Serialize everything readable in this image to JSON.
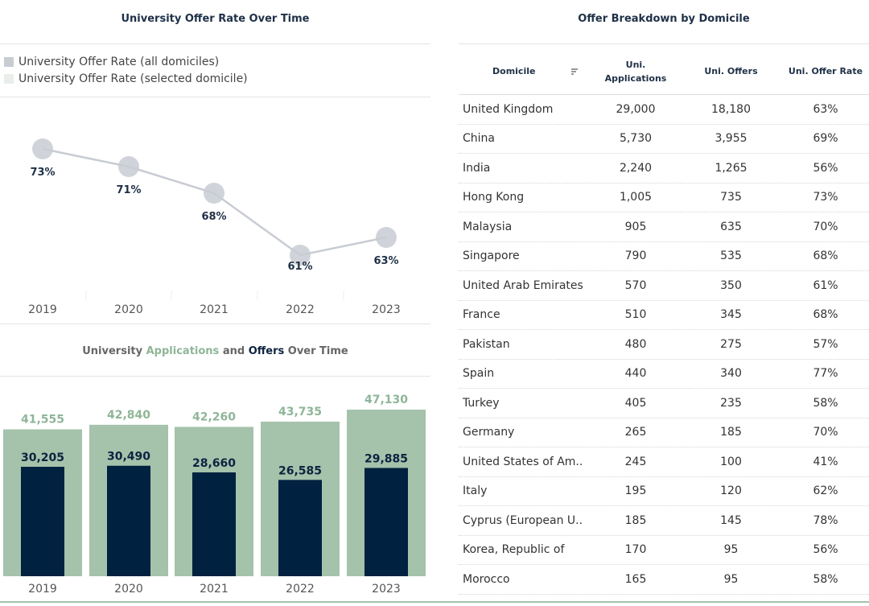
{
  "line_chart": {
    "title": "University Offer Rate Over Time",
    "legend": [
      {
        "label": "University Offer Rate (all domiciles)",
        "color": "#c8ccd3"
      },
      {
        "label": "University Offer Rate (selected domicile)",
        "color": "#e9eeea"
      }
    ]
  },
  "bar_chart": {
    "title_parts": {
      "p1": "University ",
      "p2": "Applications",
      "p3": " and ",
      "p4": "Offers",
      "p5": " Over Time"
    }
  },
  "table": {
    "title": "Offer Breakdown by Domicile",
    "headers": {
      "domicile": "Domicile",
      "applications_l1": "Uni.",
      "applications_l2": "Applications",
      "offers": "Uni. Offers",
      "rate": "Uni. Offer Rate"
    },
    "rows": [
      {
        "domicile": "United Kingdom",
        "applications": "29,000",
        "offers": "18,180",
        "rate": "63%"
      },
      {
        "domicile": "China",
        "applications": "5,730",
        "offers": "3,955",
        "rate": "69%"
      },
      {
        "domicile": "India",
        "applications": "2,240",
        "offers": "1,265",
        "rate": "56%"
      },
      {
        "domicile": "Hong Kong",
        "applications": "1,005",
        "offers": "735",
        "rate": "73%"
      },
      {
        "domicile": "Malaysia",
        "applications": "905",
        "offers": "635",
        "rate": "70%"
      },
      {
        "domicile": "Singapore",
        "applications": "790",
        "offers": "535",
        "rate": "68%"
      },
      {
        "domicile": "United Arab Emirates",
        "applications": "570",
        "offers": "350",
        "rate": "61%"
      },
      {
        "domicile": "France",
        "applications": "510",
        "offers": "345",
        "rate": "68%"
      },
      {
        "domicile": "Pakistan",
        "applications": "480",
        "offers": "275",
        "rate": "57%"
      },
      {
        "domicile": "Spain",
        "applications": "440",
        "offers": "340",
        "rate": "77%"
      },
      {
        "domicile": "Turkey",
        "applications": "405",
        "offers": "235",
        "rate": "58%"
      },
      {
        "domicile": "Germany",
        "applications": "265",
        "offers": "185",
        "rate": "70%"
      },
      {
        "domicile": "United States of Am..",
        "applications": "245",
        "offers": "100",
        "rate": "41%"
      },
      {
        "domicile": "Italy",
        "applications": "195",
        "offers": "120",
        "rate": "62%"
      },
      {
        "domicile": "Cyprus (European U..",
        "applications": "185",
        "offers": "145",
        "rate": "78%"
      },
      {
        "domicile": "Korea, Republic of",
        "applications": "170",
        "offers": "95",
        "rate": "56%"
      },
      {
        "domicile": "Morocco",
        "applications": "165",
        "offers": "95",
        "rate": "58%"
      }
    ]
  },
  "colors": {
    "applications": "#a5c2ab",
    "offers": "#00213f",
    "line": "#c8ccd3",
    "app_label": "#8fb598",
    "off_label": "#0c2340"
  },
  "chart_data": [
    {
      "type": "line",
      "title": "University Offer Rate Over Time",
      "categories": [
        "2019",
        "2020",
        "2021",
        "2022",
        "2023"
      ],
      "values": [
        73,
        71,
        68,
        61,
        63
      ],
      "labels": [
        "73%",
        "71%",
        "68%",
        "61%",
        "63%"
      ],
      "ylim": [
        58,
        76
      ],
      "series_name": "University Offer Rate (all domiciles)"
    },
    {
      "type": "bar",
      "title": "University Applications and Offers Over Time",
      "categories": [
        "2019",
        "2020",
        "2021",
        "2022",
        "2023"
      ],
      "series": [
        {
          "name": "Applications",
          "values": [
            41555,
            42840,
            42260,
            43735,
            47130
          ],
          "labels": [
            "41,555",
            "42,840",
            "42,260",
            "43,735",
            "47,130"
          ]
        },
        {
          "name": "Offers",
          "values": [
            30205,
            30490,
            28660,
            26585,
            29885
          ],
          "labels": [
            "30,205",
            "30,490",
            "28,660",
            "26,585",
            "29,885"
          ]
        }
      ],
      "ylim": [
        0,
        50000
      ]
    }
  ]
}
